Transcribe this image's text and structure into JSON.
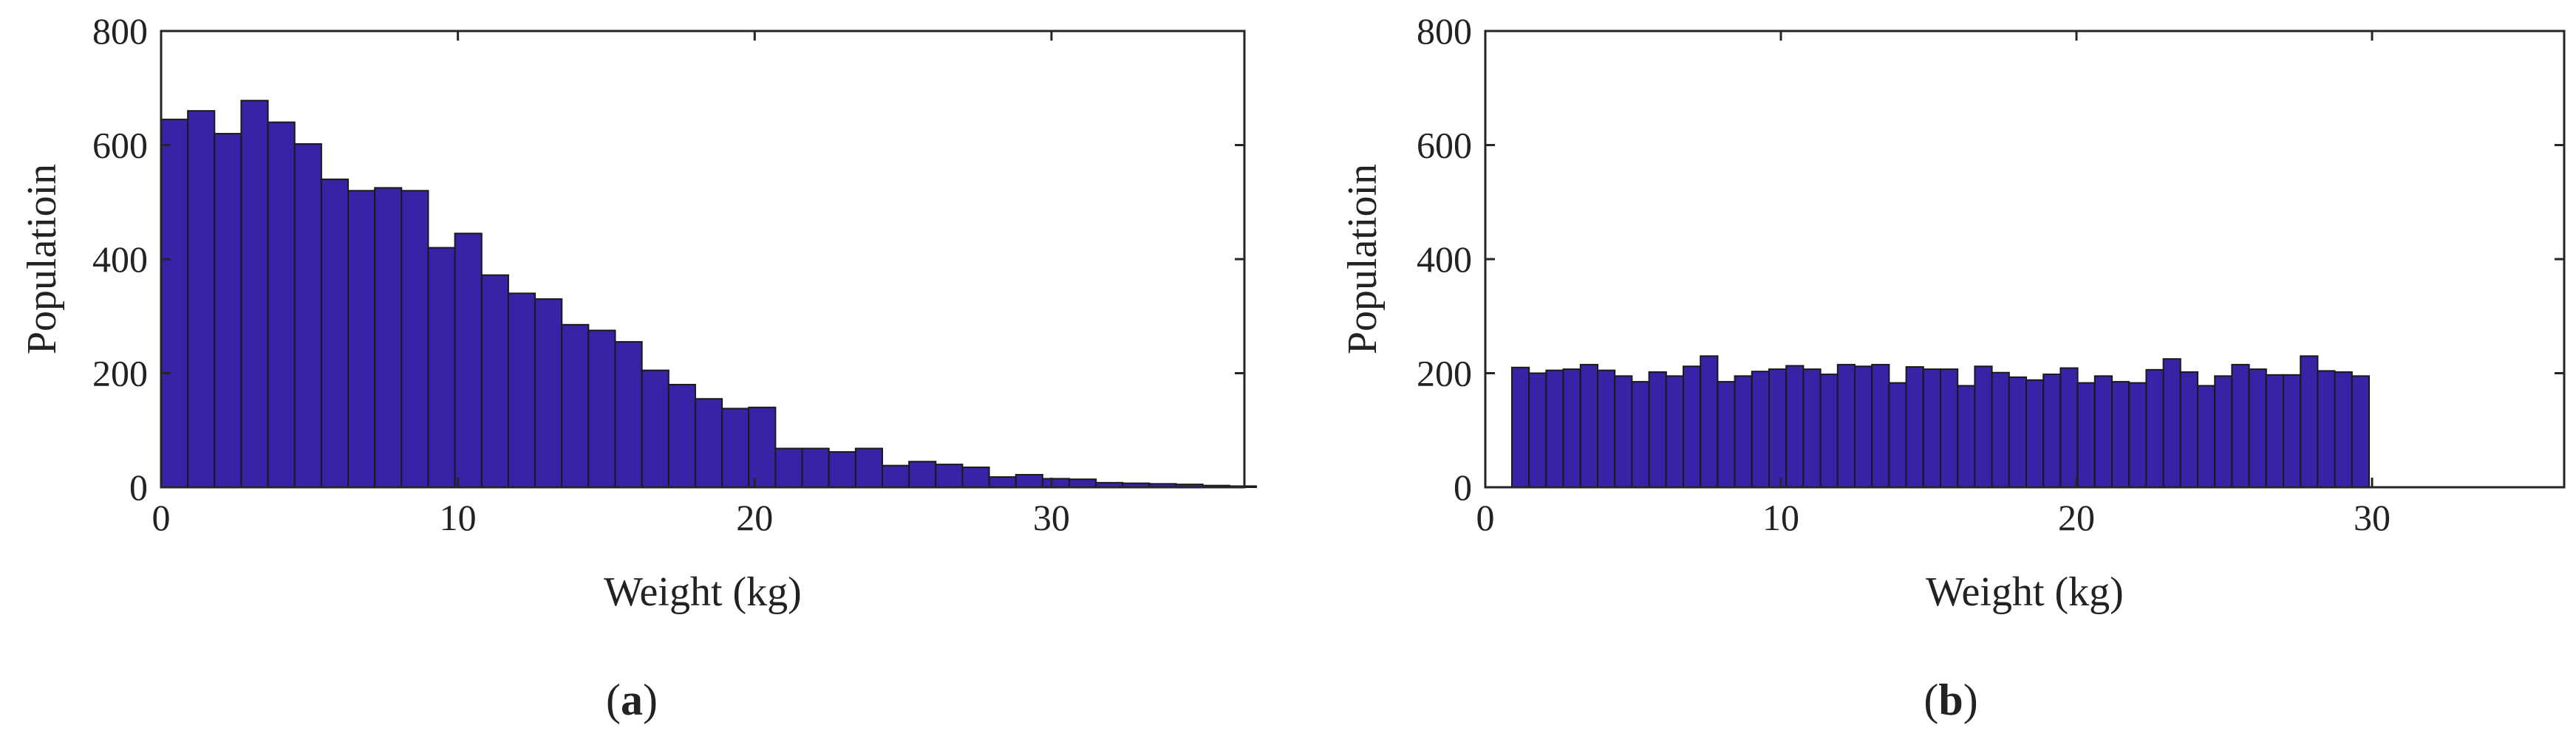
{
  "colors": {
    "bar_fill": "#3a22a6",
    "bar_edge": "#1a1a1a",
    "axis": "#262626",
    "text": "#222222"
  },
  "chart_data": [
    {
      "type": "bar",
      "panel_label": "a",
      "xlabel": "Weight (kg)",
      "ylabel": "Populatioin",
      "xlim": [
        0,
        36.5
      ],
      "ylim": [
        0,
        800
      ],
      "xticks": [
        0,
        10,
        20,
        30
      ],
      "yticks": [
        0,
        200,
        400,
        600,
        800
      ],
      "bin_width": 0.9,
      "bin_start": 0,
      "values": [
        645,
        660,
        620,
        678,
        640,
        602,
        540,
        520,
        525,
        520,
        420,
        445,
        372,
        340,
        330,
        285,
        275,
        255,
        205,
        180,
        155,
        138,
        140,
        68,
        68,
        62,
        68,
        38,
        45,
        40,
        35,
        18,
        22,
        15,
        14,
        8,
        7,
        6,
        5,
        3,
        2
      ]
    },
    {
      "type": "bar",
      "panel_label": "b",
      "xlabel": "Weight (kg)",
      "ylabel": "Populatioin",
      "xlim": [
        0,
        36.5
      ],
      "ylim": [
        0,
        800
      ],
      "xticks": [
        0,
        10,
        20,
        30
      ],
      "yticks": [
        0,
        200,
        400,
        600,
        800
      ],
      "bin_width": 0.58,
      "bin_start": 0.9,
      "values": [
        210,
        200,
        205,
        207,
        215,
        205,
        195,
        185,
        202,
        195,
        212,
        230,
        185,
        195,
        203,
        207,
        213,
        207,
        198,
        215,
        212,
        215,
        183,
        211,
        207,
        207,
        178,
        212,
        201,
        193,
        188,
        198,
        209,
        183,
        195,
        185,
        183,
        206,
        225,
        202,
        178,
        195,
        215,
        207,
        197,
        197,
        230,
        204,
        202,
        195
      ]
    }
  ]
}
